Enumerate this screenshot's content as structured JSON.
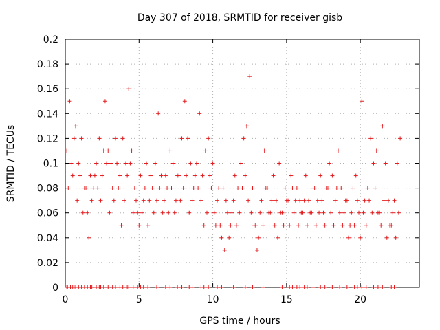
{
  "chart_data": {
    "type": "scatter",
    "title": "Day 307 of 2018, SRMTID for receiver gisb",
    "xlabel": "GPS time / hours",
    "ylabel": "SRMTID / TECUs",
    "xlim": [
      0,
      24
    ],
    "ylim": [
      0,
      0.2
    ],
    "x_ticks": [
      0,
      5,
      10,
      15,
      20
    ],
    "y_ticks": [
      0,
      0.02,
      0.04,
      0.06,
      0.08,
      0.1,
      0.12,
      0.14,
      0.16,
      0.18,
      0.2
    ],
    "x_tick_labels": [
      "0",
      "5",
      "10",
      "15",
      "20"
    ],
    "y_tick_labels": [
      "0",
      "0.02",
      "0.04",
      "0.06",
      "0.08",
      "0.1",
      "0.12",
      "0.14",
      "0.16",
      "0.18",
      "0.2"
    ],
    "grid": true,
    "marker": "+",
    "color": "#e41a1c",
    "series": [
      {
        "x": [
          0.1,
          0.3,
          0.5,
          0.7,
          0.9,
          1.1,
          1.3,
          1.5,
          1.7,
          1.9,
          2.1,
          2.3,
          2.5,
          2.7,
          2.9,
          3.1,
          3.3,
          3.5,
          3.7,
          3.9,
          4.1,
          4.3,
          4.5,
          4.7,
          4.9,
          5.1,
          5.3,
          5.5,
          5.7,
          5.9,
          6.1,
          6.3,
          6.5,
          6.7,
          6.9,
          7.1,
          7.3,
          7.5,
          7.7,
          7.9,
          8.1,
          8.3,
          8.5,
          8.7,
          8.9,
          9.1,
          9.3,
          9.5,
          9.7,
          9.9,
          10.1,
          10.3,
          10.5,
          10.7,
          10.9,
          11.1,
          11.3,
          11.5,
          11.7,
          11.9,
          12.1,
          12.3,
          12.5,
          12.7,
          12.9,
          13.1,
          13.3,
          13.5,
          13.7,
          13.9,
          14.1,
          14.3,
          14.5,
          14.7,
          14.9,
          15.1,
          15.3,
          15.5,
          15.7,
          15.9,
          16.1,
          16.3,
          16.5,
          16.7,
          16.9,
          17.1,
          17.3,
          17.5,
          17.7,
          17.9,
          18.1,
          18.3,
          18.5,
          18.7,
          18.9,
          19.1,
          19.3,
          19.5,
          19.7,
          19.9,
          20.1,
          20.3,
          20.5,
          20.7,
          20.9,
          21.1,
          21.3,
          21.5,
          21.7,
          21.9,
          22.1,
          22.3,
          22.5,
          22.7
        ],
        "y": [
          0.11,
          0.15,
          0.09,
          0.13,
          0.1,
          0.12,
          0.08,
          0.06,
          0.09,
          0.08,
          0.1,
          0.12,
          0.09,
          0.15,
          0.11,
          0.1,
          0.07,
          0.1,
          0.09,
          0.12,
          0.1,
          0.16,
          0.11,
          0.08,
          0.06,
          0.09,
          0.07,
          0.1,
          0.07,
          0.08,
          0.1,
          0.14,
          0.09,
          0.07,
          0.08,
          0.11,
          0.1,
          0.07,
          0.09,
          0.12,
          0.15,
          0.12,
          0.1,
          0.08,
          0.1,
          0.14,
          0.09,
          0.11,
          0.12,
          0.08,
          0.06,
          0.07,
          0.05,
          0.08,
          0.07,
          0.04,
          0.06,
          0.09,
          0.08,
          0.1,
          0.12,
          0.13,
          0.17,
          0.08,
          0.05,
          0.04,
          0.07,
          0.11,
          0.08,
          0.06,
          0.09,
          0.07,
          0.1,
          0.06,
          0.08,
          0.07,
          0.09,
          0.06,
          0.08,
          0.07,
          0.06,
          0.09,
          0.07,
          0.06,
          0.08,
          0.07,
          0.09,
          0.06,
          0.08,
          0.1,
          0.09,
          0.07,
          0.11,
          0.08,
          0.06,
          0.07,
          0.05,
          0.08,
          0.09,
          0.06,
          0.15,
          0.07,
          0.08,
          0.12,
          0.1,
          0.11,
          0.06,
          0.13,
          0.1,
          0.07,
          0.05,
          0.07,
          0.1,
          0.12
        ]
      },
      {
        "x": [
          0.2,
          0.4,
          0.6,
          0.8,
          1.0,
          1.2,
          1.4,
          1.6,
          1.8,
          2.0,
          2.2,
          2.4,
          2.6,
          2.8,
          3.0,
          3.2,
          3.4,
          3.6,
          3.8,
          4.0,
          4.2,
          4.4,
          4.6,
          4.8,
          5.0,
          5.2,
          5.4,
          5.6,
          5.8,
          6.0,
          6.2,
          6.4,
          6.6,
          6.8,
          7.0,
          7.2,
          7.4,
          7.6,
          7.8,
          8.0,
          8.2,
          8.4,
          8.6,
          8.8,
          9.0,
          9.2,
          9.4,
          9.6,
          9.8,
          10.0,
          10.2,
          10.4,
          10.6,
          10.8,
          11.0,
          11.2,
          11.4,
          11.6,
          11.8,
          12.0,
          12.2,
          12.4,
          12.6,
          12.8,
          13.0,
          13.2,
          13.4,
          13.6,
          13.8,
          14.0,
          14.2,
          14.4,
          14.6,
          14.8,
          15.0,
          15.2,
          15.4,
          15.6,
          15.8,
          16.0,
          16.2,
          16.4,
          16.6,
          16.8,
          17.0,
          17.2,
          17.4,
          17.6,
          17.8,
          18.0,
          18.2,
          18.4,
          18.6,
          18.8,
          19.0,
          19.2,
          19.4,
          19.6,
          19.8,
          20.0,
          20.2,
          20.4,
          20.6,
          20.8,
          21.0,
          21.2,
          21.4,
          21.6,
          21.8,
          22.0,
          22.2,
          22.4,
          22.6
        ],
        "y": [
          0.08,
          0.1,
          0.12,
          0.07,
          0.09,
          0.06,
          0.08,
          0.04,
          0.07,
          0.09,
          0.08,
          0.07,
          0.11,
          0.1,
          0.06,
          0.08,
          0.12,
          0.08,
          0.05,
          0.07,
          0.09,
          0.1,
          0.06,
          0.07,
          0.05,
          0.06,
          0.08,
          0.05,
          0.09,
          0.06,
          0.07,
          0.08,
          0.06,
          0.09,
          0.06,
          0.08,
          0.06,
          0.09,
          0.07,
          0.08,
          0.09,
          0.06,
          0.07,
          0.09,
          0.08,
          0.07,
          0.05,
          0.06,
          0.09,
          0.1,
          0.05,
          0.08,
          0.04,
          0.03,
          0.06,
          0.05,
          0.07,
          0.05,
          0.06,
          0.08,
          0.09,
          0.07,
          0.06,
          0.05,
          0.03,
          0.06,
          0.05,
          0.08,
          0.06,
          0.07,
          0.05,
          0.04,
          0.06,
          0.05,
          0.07,
          0.05,
          0.08,
          0.07,
          0.05,
          0.06,
          0.07,
          0.05,
          0.06,
          0.08,
          0.05,
          0.06,
          0.07,
          0.05,
          0.08,
          0.06,
          0.05,
          0.08,
          0.06,
          0.05,
          0.07,
          0.04,
          0.06,
          0.05,
          0.07,
          0.04,
          0.06,
          0.05,
          0.07,
          0.06,
          0.08,
          0.06,
          0.05,
          0.07,
          0.04,
          0.05,
          0.06,
          0.04,
          0.06
        ]
      }
    ],
    "zero_line_x": [
      0.1,
      0.15,
      0.35,
      0.5,
      0.6,
      0.7,
      0.9,
      1.1,
      1.3,
      1.5,
      1.7,
      1.8,
      2.1,
      2.3,
      2.4,
      2.6,
      2.9,
      3.2,
      3.4,
      3.7,
      3.9,
      4.2,
      4.3,
      4.6,
      4.9,
      5.1,
      5.3,
      5.6,
      6.2,
      6.8,
      7.1,
      7.6,
      7.9,
      8.4,
      8.6,
      9.2,
      9.4,
      9.7,
      10.3,
      10.6,
      11.4,
      12.2,
      12.7,
      13.4,
      14.7,
      15.2,
      15.4,
      15.7,
      15.9,
      16.2,
      16.4,
      16.8,
      17.3,
      17.6,
      18.1,
      18.6,
      19.1,
      19.6,
      19.8,
      20.1,
      20.4,
      20.9,
      21.2,
      21.5,
      22.1,
      22.3
    ]
  }
}
